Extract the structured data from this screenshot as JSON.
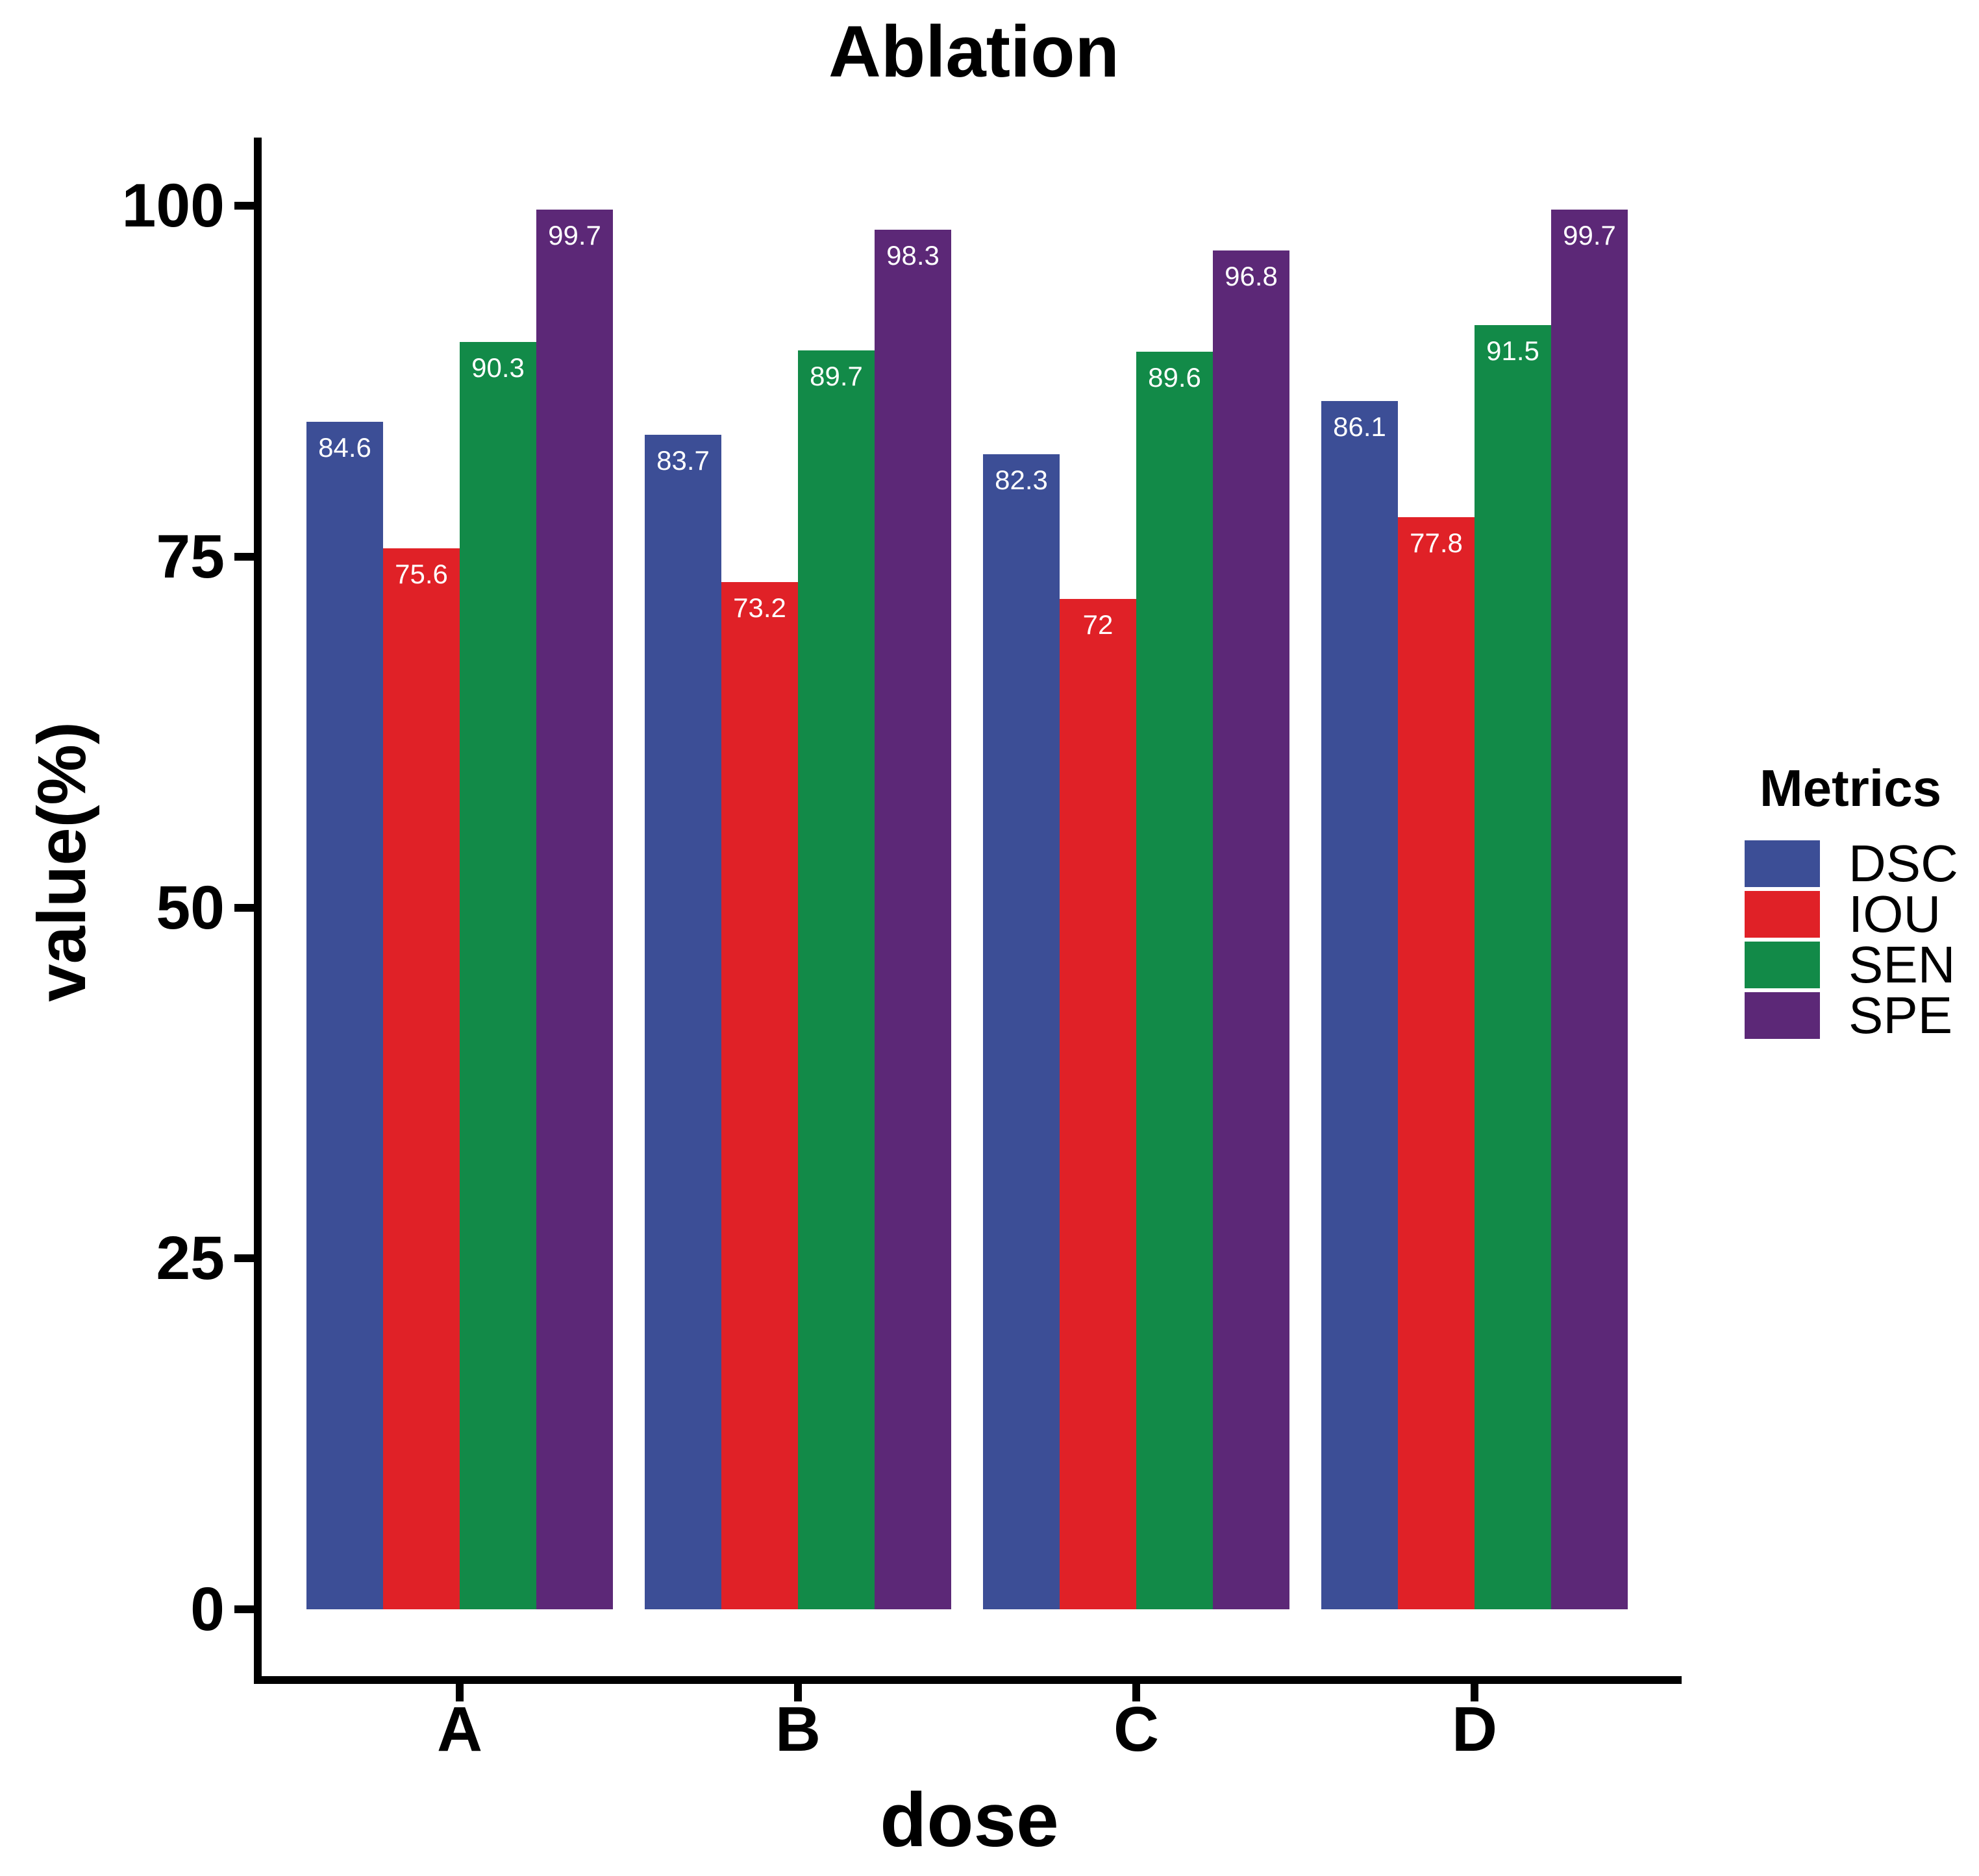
{
  "chart_data": {
    "type": "bar",
    "title": "Ablation",
    "xlabel": "dose",
    "ylabel": "value(%)",
    "ylim": [
      0,
      100
    ],
    "yticks": [
      "0",
      "25",
      "50",
      "75",
      "100"
    ],
    "categories": [
      "A",
      "B",
      "C",
      "D"
    ],
    "grid": false,
    "legend_title": "Metrics",
    "legend_position": "right",
    "bar_label_color": "#ffffff",
    "series": [
      {
        "name": "DSC",
        "color": "#3C4E96",
        "values": [
          84.6,
          83.7,
          82.3,
          86.1
        ],
        "labels": [
          "84.6",
          "83.7",
          "82.3",
          "86.1"
        ]
      },
      {
        "name": "IOU",
        "color": "#E02127",
        "values": [
          75.6,
          73.2,
          72,
          77.8
        ],
        "labels": [
          "75.6",
          "73.2",
          "72",
          "77.8"
        ]
      },
      {
        "name": "SEN",
        "color": "#128A48",
        "values": [
          90.3,
          89.7,
          89.6,
          91.5
        ],
        "labels": [
          "90.3",
          "89.7",
          "89.6",
          "91.5"
        ]
      },
      {
        "name": "SPE",
        "color": "#5C2877",
        "values": [
          99.7,
          98.3,
          96.8,
          99.7
        ],
        "labels": [
          "99.7",
          "98.3",
          "96.8",
          "99.7"
        ]
      }
    ]
  }
}
